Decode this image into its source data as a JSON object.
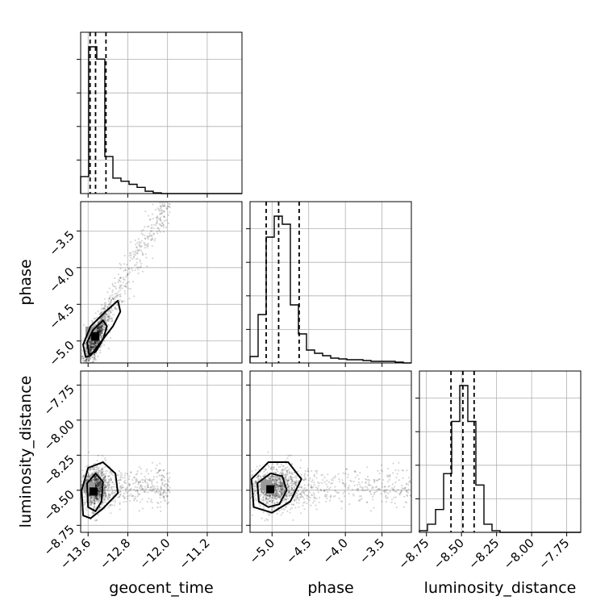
{
  "chart_data": {
    "type": "corner",
    "parameters": [
      "geocent_time",
      "phase",
      "luminosity_distance"
    ],
    "axes": {
      "geocent_time": {
        "label": "geocent_time",
        "range": [
          -13.75,
          -10.5
        ],
        "ticks": [
          -13.6,
          -12.8,
          -12.0,
          -11.2
        ],
        "tick_labels": [
          "−13.6",
          "−12.8",
          "−12.0",
          "−11.2"
        ]
      },
      "phase": {
        "label": "phase",
        "range": [
          -5.3,
          -3.1
        ],
        "ticks": [
          -5.0,
          -4.5,
          -4.0,
          -3.5
        ],
        "tick_labels": [
          "−5.0",
          "−4.5",
          "−4.0",
          "−3.5"
        ]
      },
      "luminosity_distance": {
        "label": "luminosity_distance",
        "range": [
          -8.8,
          -7.65
        ],
        "ticks": [
          -8.75,
          -8.5,
          -8.25,
          -8.0,
          -7.75
        ],
        "tick_labels": [
          "−8.75",
          "−8.50",
          "−8.25",
          "−8.00",
          "−7.75"
        ]
      }
    },
    "marginals": {
      "geocent_time": {
        "bin_edges": [
          -13.75,
          -13.588,
          -13.425,
          -13.263,
          -13.1,
          -12.938,
          -12.775,
          -12.613,
          -12.45,
          -12.288,
          -12.125,
          -11.963,
          -11.8,
          -11.638,
          -11.475,
          -11.313,
          -11.15,
          -10.988,
          -10.825,
          -10.663,
          -10.5
        ],
        "counts": [
          0.11,
          0.95,
          0.87,
          0.24,
          0.1,
          0.08,
          0.06,
          0.04,
          0.015,
          0.005,
          0,
          0,
          0,
          0,
          0,
          0,
          0,
          0,
          0,
          0
        ],
        "quantiles": [
          -13.56,
          -13.45,
          -13.24
        ]
      },
      "phase": {
        "bin_edges": [
          -5.3,
          -5.19,
          -5.08,
          -4.97,
          -4.86,
          -4.75,
          -4.64,
          -4.53,
          -4.42,
          -4.31,
          -4.2,
          -4.09,
          -3.98,
          -3.87,
          -3.76,
          -3.65,
          -3.54,
          -3.43,
          -3.32,
          -3.21,
          -3.1
        ],
        "counts": [
          0.04,
          0.3,
          0.78,
          0.91,
          0.86,
          0.36,
          0.18,
          0.08,
          0.06,
          0.045,
          0.03,
          0.025,
          0.02,
          0.02,
          0.015,
          0.01,
          0.01,
          0.01,
          0.005,
          0.0
        ],
        "quantiles": [
          -5.08,
          -4.91,
          -4.63
        ]
      },
      "luminosity_distance": {
        "bin_edges": [
          -8.8,
          -8.7425,
          -8.685,
          -8.6275,
          -8.57,
          -8.5125,
          -8.455,
          -8.3975,
          -8.34,
          -8.2825,
          -8.225,
          -8.1675,
          -8.11,
          -8.0525,
          -7.995,
          -7.9375,
          -7.88,
          -7.8225,
          -7.765,
          -7.7075,
          -7.65
        ],
        "counts": [
          0.01,
          0.05,
          0.14,
          0.36,
          0.68,
          0.9,
          0.68,
          0.29,
          0.05,
          0.01,
          0,
          0,
          0,
          0,
          0,
          0,
          0,
          0,
          0,
          0
        ],
        "quantiles": [
          -8.575,
          -8.49,
          -8.41
        ]
      }
    },
    "joint_contours": {
      "phase_vs_geocent_time": [
        [
          [
            -13.65,
            -5.22
          ],
          [
            -13.7,
            -5.05
          ],
          [
            -13.55,
            -4.8
          ],
          [
            -13.25,
            -4.6
          ],
          [
            -13.0,
            -4.45
          ],
          [
            -12.95,
            -4.6
          ],
          [
            -13.1,
            -4.8
          ],
          [
            -13.35,
            -5.02
          ],
          [
            -13.55,
            -5.2
          ]
        ],
        [
          [
            -13.58,
            -5.18
          ],
          [
            -13.62,
            -5.02
          ],
          [
            -13.5,
            -4.85
          ],
          [
            -13.3,
            -4.72
          ],
          [
            -13.22,
            -4.8
          ],
          [
            -13.3,
            -4.98
          ],
          [
            -13.45,
            -5.15
          ]
        ]
      ],
      "luminosity_distance_vs_geocent_time": [
        [
          [
            -13.7,
            -8.68
          ],
          [
            -13.73,
            -8.5
          ],
          [
            -13.6,
            -8.34
          ],
          [
            -13.3,
            -8.3
          ],
          [
            -13.05,
            -8.38
          ],
          [
            -13.0,
            -8.52
          ],
          [
            -13.3,
            -8.63
          ],
          [
            -13.55,
            -8.7
          ]
        ],
        [
          [
            -13.6,
            -8.62
          ],
          [
            -13.62,
            -8.45
          ],
          [
            -13.45,
            -8.38
          ],
          [
            -13.3,
            -8.44
          ],
          [
            -13.33,
            -8.58
          ],
          [
            -13.45,
            -8.65
          ]
        ]
      ],
      "luminosity_distance_vs_phase": [
        [
          [
            -5.25,
            -8.62
          ],
          [
            -5.28,
            -8.42
          ],
          [
            -5.05,
            -8.3
          ],
          [
            -4.78,
            -8.3
          ],
          [
            -4.6,
            -8.42
          ],
          [
            -4.75,
            -8.58
          ],
          [
            -5.0,
            -8.66
          ]
        ],
        [
          [
            -5.18,
            -8.58
          ],
          [
            -5.2,
            -8.45
          ],
          [
            -5.02,
            -8.38
          ],
          [
            -4.86,
            -8.4
          ],
          [
            -4.8,
            -8.5
          ],
          [
            -4.9,
            -8.6
          ],
          [
            -5.05,
            -8.62
          ]
        ]
      ]
    },
    "grid": true,
    "legend": "none"
  }
}
